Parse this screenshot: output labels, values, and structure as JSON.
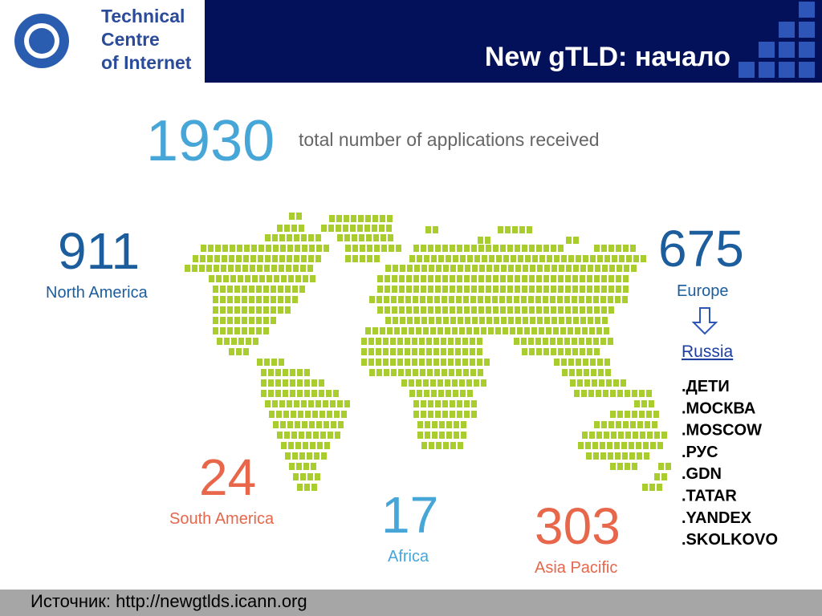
{
  "header": {
    "logo_lines": [
      "Technical",
      "Centre",
      "of Internet"
    ],
    "title": "New gTLD: начало"
  },
  "total": {
    "value": 1930,
    "label": "total number of applications received"
  },
  "regions": [
    {
      "value": 911,
      "label": "North America"
    },
    {
      "value": 675,
      "label": "Europe"
    },
    {
      "value": 24,
      "label": "South America"
    },
    {
      "value": 17,
      "label": "Africa"
    },
    {
      "value": 303,
      "label": "Asia Pacific"
    }
  ],
  "russia": {
    "label": "Russia",
    "domains": [
      ".ДЕТИ",
      ".МОСКВА",
      ".MOSCOW",
      ".РУС",
      ".GDN",
      ".TATAR",
      ".YANDEX",
      ".SKOLKOVO"
    ]
  },
  "footer": {
    "source": "Источник: http://newgtlds.icann.org"
  }
}
